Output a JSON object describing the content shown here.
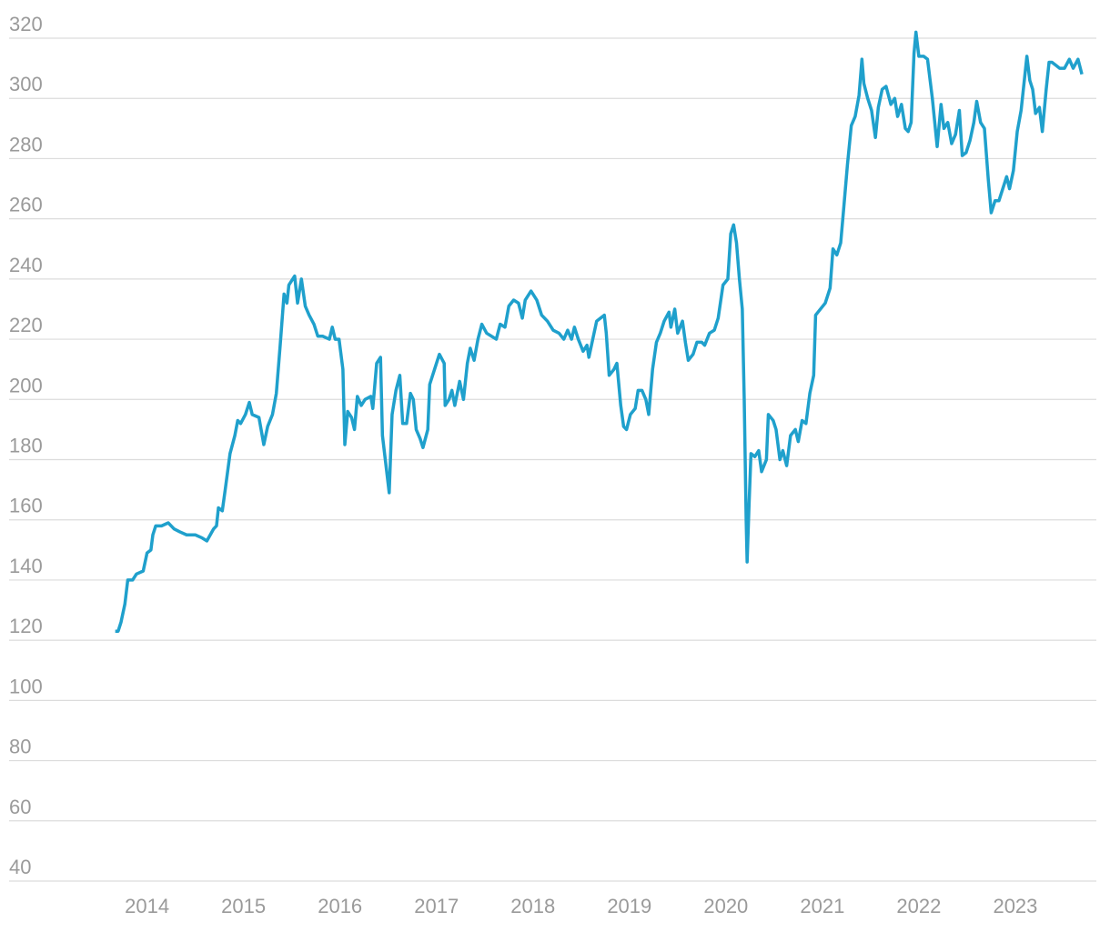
{
  "chart_data": {
    "type": "line",
    "x": [
      2013.67,
      2013.7,
      2013.73,
      2013.77,
      2013.8,
      2013.85,
      2013.89,
      2013.96,
      2014.0,
      2014.04,
      2014.06,
      2014.09,
      2014.15,
      2014.22,
      2014.28,
      2014.34,
      2014.41,
      2014.5,
      2014.57,
      2014.62,
      2014.69,
      2014.72,
      2014.74,
      2014.78,
      2014.81,
      2014.86,
      2014.91,
      2014.94,
      2014.97,
      2015.02,
      2015.06,
      2015.09,
      2015.16,
      2015.21,
      2015.25,
      2015.3,
      2015.34,
      2015.38,
      2015.42,
      2015.45,
      2015.47,
      2015.53,
      2015.56,
      2015.6,
      2015.64,
      2015.68,
      2015.73,
      2015.77,
      2015.82,
      2015.89,
      2015.92,
      2015.95,
      2015.99,
      2016.03,
      2016.05,
      2016.08,
      2016.12,
      2016.15,
      2016.18,
      2016.22,
      2016.26,
      2016.32,
      2016.34,
      2016.38,
      2016.42,
      2016.44,
      2016.51,
      2016.54,
      2016.58,
      2016.62,
      2016.65,
      2016.69,
      2016.73,
      2016.76,
      2016.79,
      2016.83,
      2016.86,
      2016.91,
      2016.93,
      2016.98,
      2017.03,
      2017.08,
      2017.09,
      2017.13,
      2017.16,
      2017.19,
      2017.24,
      2017.28,
      2017.32,
      2017.35,
      2017.39,
      2017.43,
      2017.47,
      2017.52,
      2017.57,
      2017.62,
      2017.66,
      2017.71,
      2017.75,
      2017.8,
      2017.85,
      2017.89,
      2017.92,
      2017.98,
      2018.04,
      2018.09,
      2018.15,
      2018.21,
      2018.27,
      2018.32,
      2018.36,
      2018.4,
      2018.43,
      2018.47,
      2018.52,
      2018.56,
      2018.58,
      2018.62,
      2018.66,
      2018.7,
      2018.74,
      2018.76,
      2018.79,
      2018.84,
      2018.87,
      2018.91,
      2018.94,
      2018.97,
      2019.01,
      2019.06,
      2019.09,
      2019.13,
      2019.17,
      2019.2,
      2019.24,
      2019.28,
      2019.32,
      2019.36,
      2019.41,
      2019.43,
      2019.47,
      2019.5,
      2019.55,
      2019.58,
      2019.61,
      2019.66,
      2019.7,
      2019.75,
      2019.78,
      2019.83,
      2019.88,
      2019.92,
      2019.97,
      2020.02,
      2020.05,
      2020.08,
      2020.11,
      2020.14,
      2020.17,
      2020.19,
      2020.21,
      2020.22,
      2020.24,
      2020.26,
      2020.3,
      2020.34,
      2020.37,
      2020.42,
      2020.44,
      2020.49,
      2020.52,
      2020.56,
      2020.59,
      2020.63,
      2020.67,
      2020.72,
      2020.75,
      2020.79,
      2020.83,
      2020.87,
      2020.91,
      2020.93,
      2020.98,
      2021.03,
      2021.08,
      2021.11,
      2021.15,
      2021.19,
      2021.22,
      2021.26,
      2021.3,
      2021.34,
      2021.38,
      2021.41,
      2021.43,
      2021.47,
      2021.51,
      2021.55,
      2021.58,
      2021.62,
      2021.66,
      2021.71,
      2021.75,
      2021.78,
      2021.82,
      2021.86,
      2021.89,
      2021.92,
      2021.95,
      2021.97,
      2022.0,
      2022.05,
      2022.09,
      2022.14,
      2022.19,
      2022.23,
      2022.26,
      2022.3,
      2022.34,
      2022.38,
      2022.42,
      2022.45,
      2022.49,
      2022.53,
      2022.57,
      2022.6,
      2022.64,
      2022.68,
      2022.72,
      2022.75,
      2022.79,
      2022.83,
      2022.87,
      2022.91,
      2022.94,
      2022.98,
      2023.02,
      2023.06,
      2023.09,
      2023.12,
      2023.15,
      2023.18,
      2023.21,
      2023.25,
      2023.28,
      2023.32,
      2023.35,
      2023.38,
      2023.42,
      2023.46,
      2023.51,
      2023.56,
      2023.6,
      2023.65,
      2023.69
    ],
    "series": [
      {
        "color": "#1fa0cc",
        "values": [
          123,
          123,
          126,
          132,
          140,
          140,
          142,
          143,
          149,
          150,
          155,
          158,
          158,
          159,
          157,
          156,
          155,
          155,
          154,
          153,
          157,
          158,
          164,
          163,
          170,
          182,
          188,
          193,
          192,
          195,
          199,
          195,
          194,
          185,
          191,
          195,
          202,
          218,
          235,
          232,
          238,
          241,
          232,
          240,
          231,
          228,
          225,
          221,
          221,
          220,
          224,
          220,
          220,
          210,
          185,
          196,
          194,
          190,
          201,
          198,
          200,
          201,
          197,
          212,
          214,
          188,
          169,
          195,
          203,
          208,
          192,
          192,
          202,
          200,
          190,
          187,
          184,
          190,
          205,
          210,
          215,
          212,
          198,
          200,
          203,
          198,
          206,
          200,
          212,
          217,
          213,
          220,
          225,
          222,
          221,
          220,
          225,
          224,
          231,
          233,
          232,
          227,
          233,
          236,
          233,
          228,
          226,
          223,
          222,
          220,
          223,
          220,
          224,
          220,
          216,
          218,
          214,
          220,
          226,
          227,
          228,
          222,
          208,
          210,
          212,
          198,
          191,
          190,
          195,
          197,
          203,
          203,
          200,
          195,
          210,
          219,
          222,
          226,
          229,
          224,
          230,
          222,
          226,
          219,
          213,
          215,
          219,
          219,
          218,
          222,
          223,
          227,
          238,
          240,
          255,
          258,
          252,
          240,
          230,
          200,
          160,
          146,
          165,
          182,
          181,
          183,
          176,
          180,
          195,
          193,
          190,
          180,
          183,
          178,
          188,
          190,
          186,
          193,
          192,
          202,
          208,
          228,
          230,
          232,
          237,
          250,
          248,
          252,
          263,
          278,
          291,
          294,
          301,
          313,
          305,
          300,
          296,
          287,
          297,
          303,
          304,
          298,
          300,
          294,
          298,
          290,
          289,
          292,
          315,
          322,
          314,
          314,
          313,
          300,
          284,
          298,
          290,
          292,
          285,
          288,
          296,
          281,
          282,
          286,
          292,
          299,
          292,
          290,
          273,
          262,
          266,
          266,
          270,
          274,
          270,
          276,
          289,
          296,
          305,
          314,
          306,
          303,
          295,
          297,
          289,
          303,
          312,
          312,
          311,
          310,
          310,
          313,
          310,
          313,
          308
        ]
      }
    ],
    "xlim": [
      2012.57,
      2023.84
    ],
    "xticks": [
      2014,
      2015,
      2016,
      2017,
      2018,
      2019,
      2020,
      2021,
      2022,
      2023
    ],
    "ylim": [
      40,
      320
    ],
    "yticks": [
      40,
      60,
      80,
      100,
      120,
      140,
      160,
      180,
      200,
      220,
      240,
      260,
      280,
      300,
      320
    ],
    "grid": true
  }
}
